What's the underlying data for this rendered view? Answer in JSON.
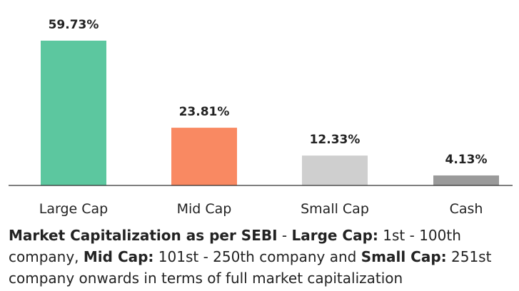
{
  "chart_data": {
    "type": "bar",
    "categories": [
      "Large Cap",
      "Mid Cap",
      "Small Cap",
      "Cash"
    ],
    "values": [
      59.73,
      23.81,
      12.33,
      4.13
    ],
    "value_labels": [
      "59.73%",
      "23.81%",
      "12.33%",
      "4.13%"
    ],
    "colors": [
      "#5cc79f",
      "#f98962",
      "#cfcfcf",
      "#9a9a9a"
    ],
    "ylim": [
      0,
      59.73
    ],
    "grid": false,
    "legend": "none"
  },
  "footnote": {
    "p1_bold": "Market Capitalization as per SEBI",
    "p1": " - ",
    "p2_bold": "Large Cap:",
    "p2": " 1st - 100th company, ",
    "p3_bold": "Mid Cap:",
    "p3": " 101st - 250th company and ",
    "p4_bold": "Small Cap:",
    "p4": " 251st company onwards in terms of full market capitalization"
  }
}
